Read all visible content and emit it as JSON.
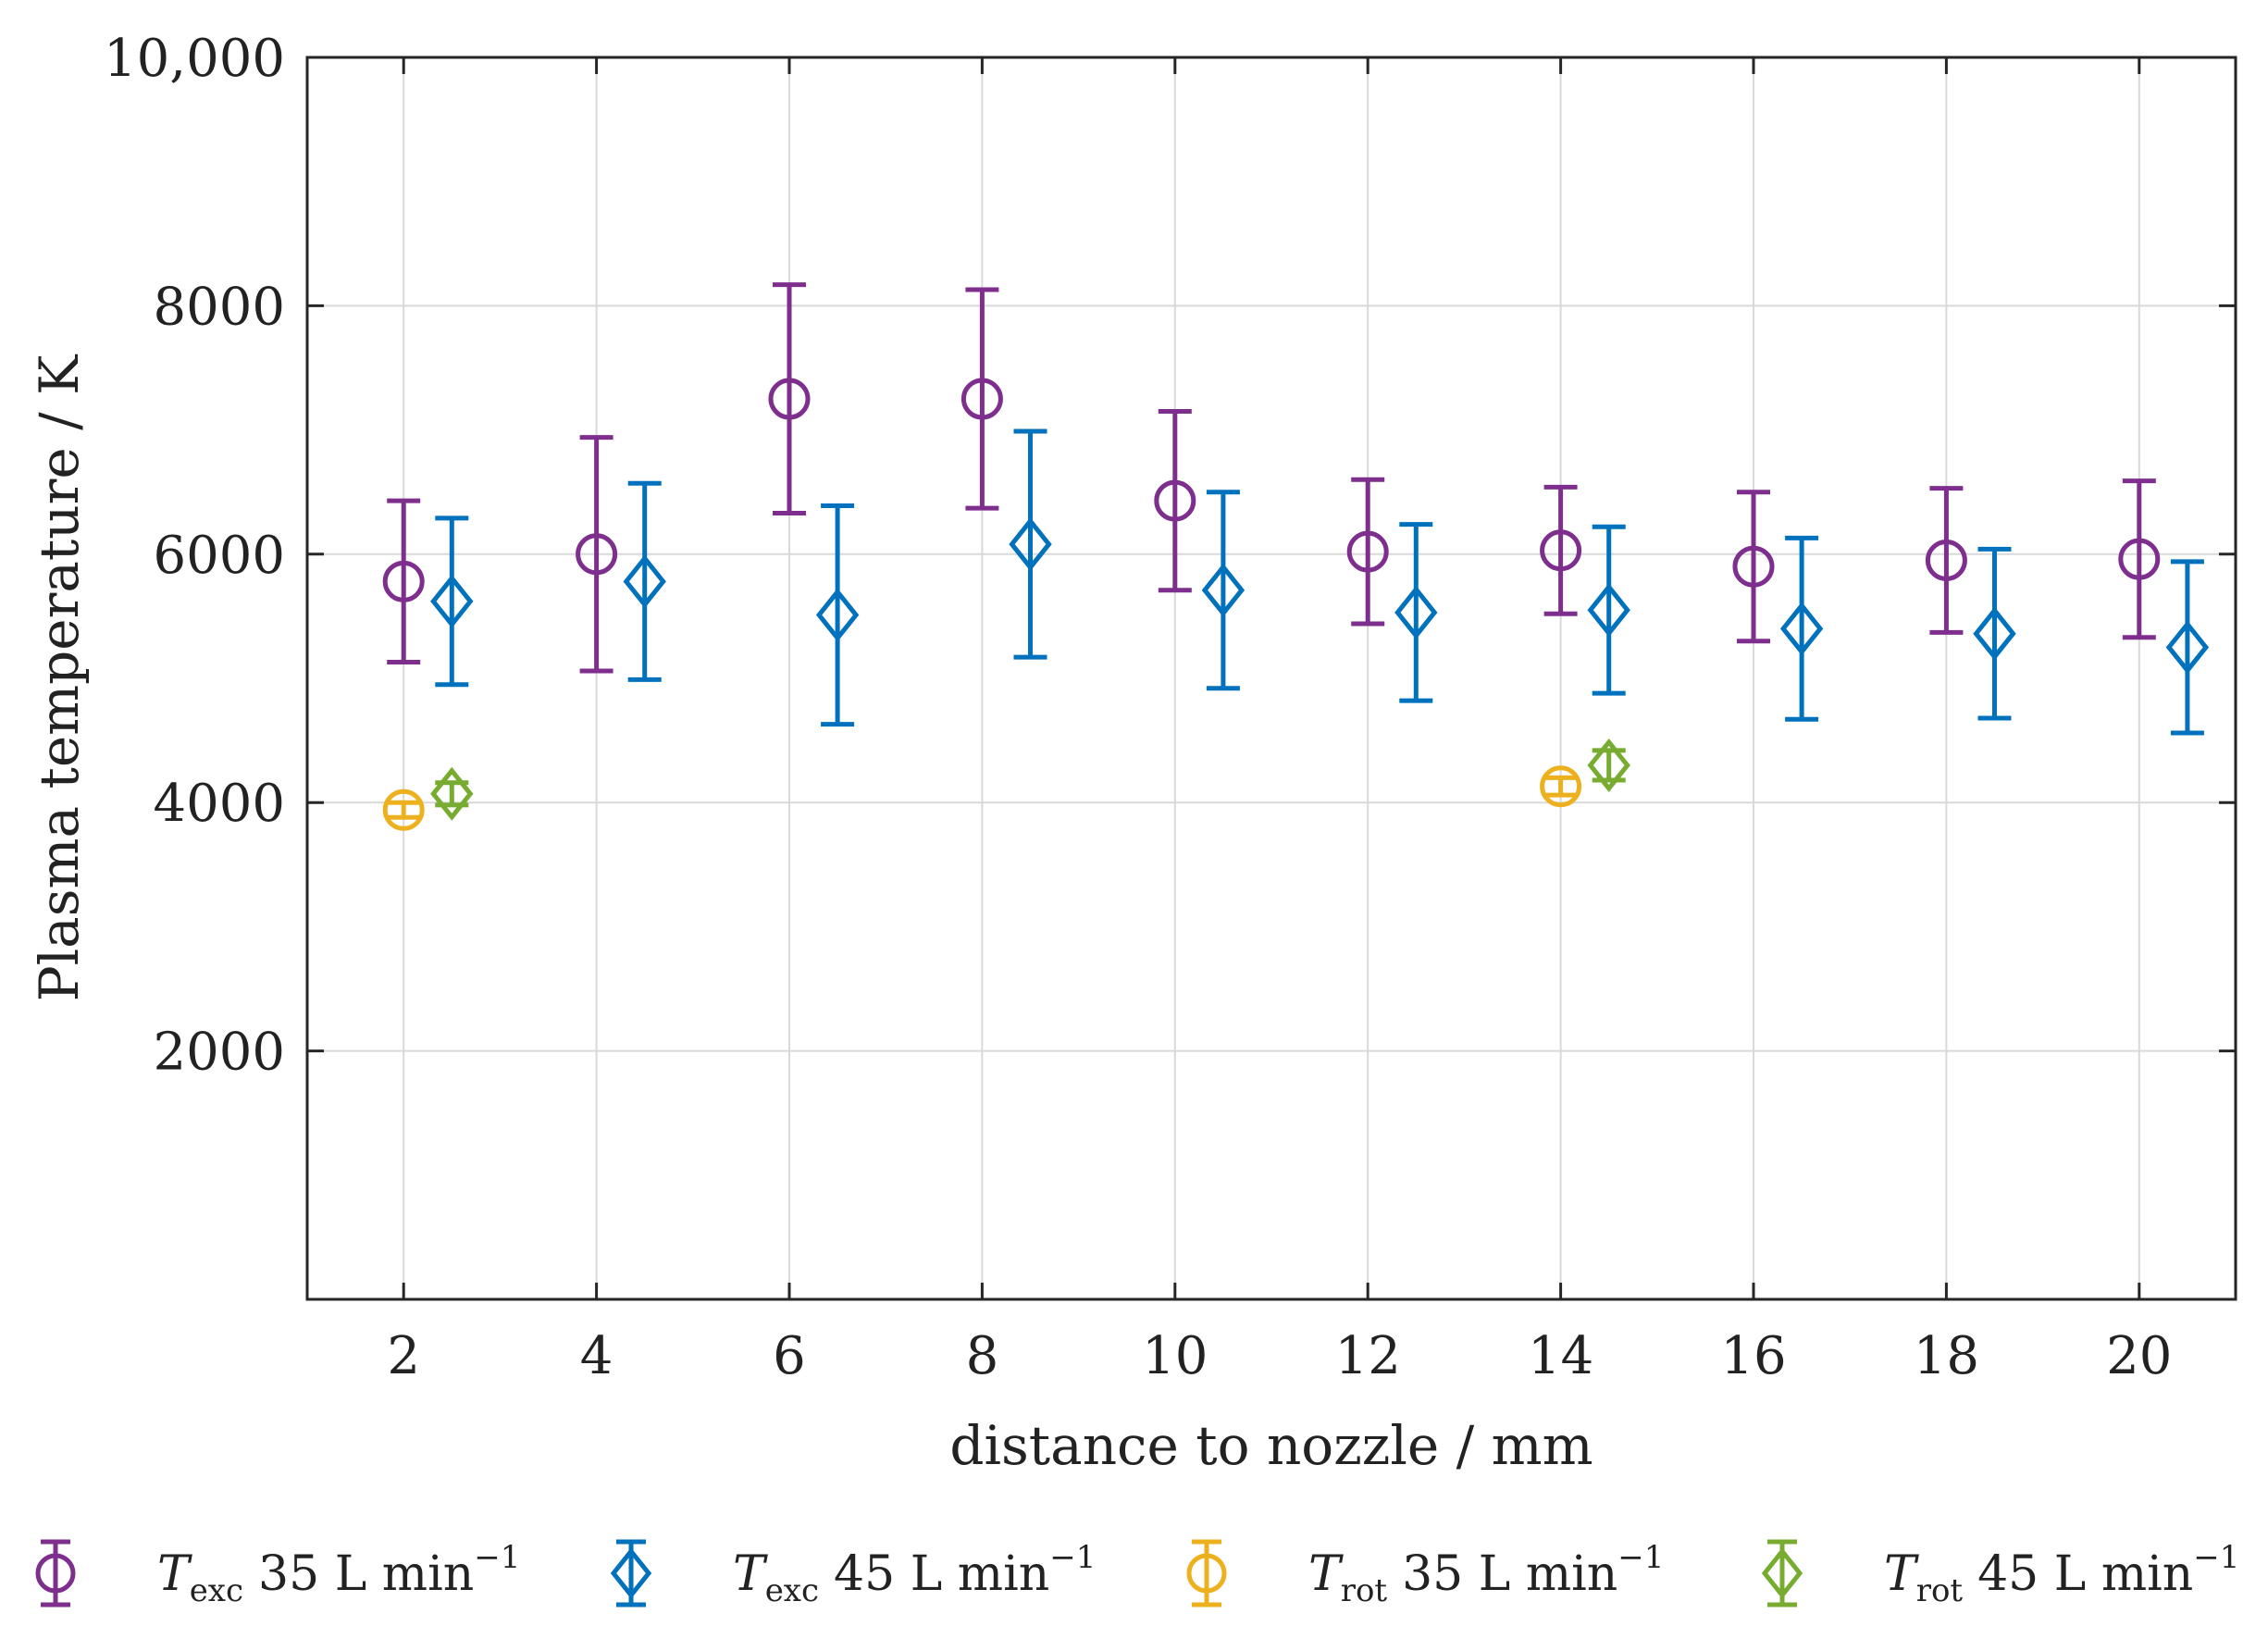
{
  "chart_data": {
    "type": "scatter",
    "xlabel": "distance to nozzle / mm",
    "ylabel": "Plasma temperature / K",
    "xlim": [
      1,
      21
    ],
    "ylim": [
      0,
      10000
    ],
    "x_ticks": [
      2,
      4,
      6,
      8,
      10,
      12,
      14,
      16,
      18,
      20
    ],
    "x_tick_labels": [
      "2",
      "4",
      "6",
      "8",
      "10",
      "12",
      "14",
      "16",
      "18",
      "20"
    ],
    "y_ticks": [
      2000,
      4000,
      6000,
      8000,
      10000
    ],
    "y_tick_labels": [
      "2000",
      "4000",
      "6000",
      "8000",
      "10,000"
    ],
    "grid": true,
    "legend_position": "below",
    "series": [
      {
        "name": "T_exc 35 L min^-1",
        "legend": {
          "sym": "T",
          "sub": "exc",
          "flow": "35 L min",
          "exp": "−1"
        },
        "color": "#7E2F8E",
        "marker": "circle",
        "x_offset": 0,
        "x": [
          2,
          4,
          6,
          8,
          10,
          12,
          14,
          16,
          18,
          20
        ],
        "y": [
          5780,
          6000,
          7250,
          7250,
          6430,
          6020,
          6030,
          5900,
          5950,
          5960
        ],
        "err": [
          650,
          940,
          920,
          880,
          720,
          580,
          510,
          600,
          580,
          630
        ]
      },
      {
        "name": "T_exc 45 L min^-1",
        "legend": {
          "sym": "T",
          "sub": "exc",
          "flow": "45 L min",
          "exp": "−1"
        },
        "color": "#0072BD",
        "marker": "diamond",
        "x_offset": 0.5,
        "x": [
          2,
          4,
          6,
          8,
          10,
          12,
          14,
          16,
          18,
          20
        ],
        "y": [
          5620,
          5780,
          5510,
          6080,
          5710,
          5530,
          5550,
          5400,
          5360,
          5250
        ],
        "err": [
          670,
          790,
          880,
          910,
          790,
          710,
          670,
          730,
          680,
          690
        ]
      },
      {
        "name": "T_rot 35 L min^-1",
        "legend": {
          "sym": "T",
          "sub": "rot",
          "flow": "35 L min",
          "exp": "−1"
        },
        "color": "#EDB120",
        "marker": "circle",
        "x_offset": 0,
        "x": [
          2,
          14
        ],
        "y": [
          3940,
          4130
        ],
        "err": [
          60,
          70
        ]
      },
      {
        "name": "T_rot 45 L min^-1",
        "legend": {
          "sym": "T",
          "sub": "rot",
          "flow": "45 L min",
          "exp": "−1"
        },
        "color": "#77AC30",
        "marker": "diamond",
        "x_offset": 0.5,
        "x": [
          2,
          14
        ],
        "y": [
          4070,
          4300
        ],
        "err": [
          90,
          120
        ]
      }
    ]
  }
}
